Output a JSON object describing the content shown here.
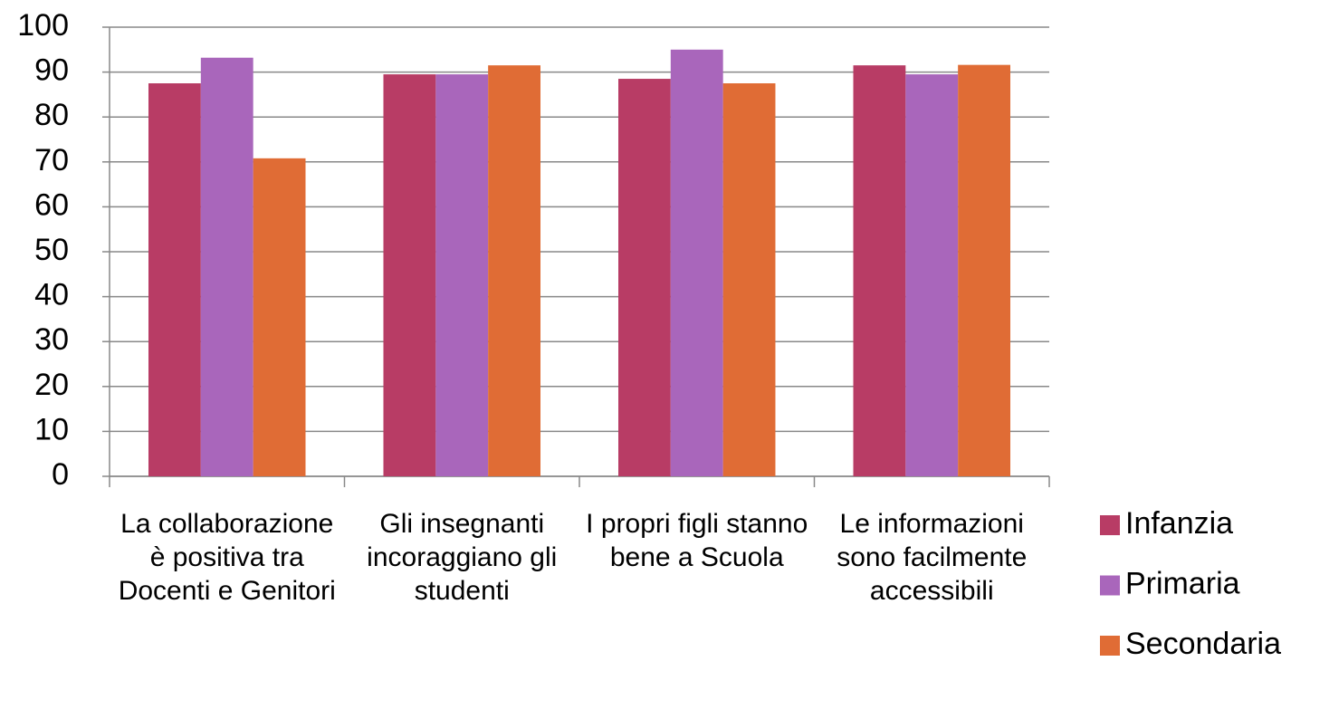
{
  "chart_data": {
    "type": "bar",
    "categories": [
      "La collaborazione è positiva tra Docenti e Genitori",
      "Gli insegnanti incoraggiano gli studenti",
      "I propri figli stanno bene a Scuola",
      "Le informazioni sono facilmente accessibili"
    ],
    "series": [
      {
        "name": "Infanzia",
        "color": "#b83c65",
        "values": [
          87.5,
          89.5,
          88.5,
          91.5
        ]
      },
      {
        "name": "Primaria",
        "color": "#a966bb",
        "values": [
          93.2,
          89.5,
          95,
          89.5
        ]
      },
      {
        "name": "Secondaria",
        "color": "#e06c35",
        "values": [
          70.8,
          91.5,
          87.5,
          91.6
        ]
      }
    ],
    "ylim": [
      0,
      100
    ],
    "yticks": [
      0,
      10,
      20,
      30,
      40,
      50,
      60,
      70,
      80,
      90,
      100
    ],
    "grid": true,
    "legend": "right"
  }
}
